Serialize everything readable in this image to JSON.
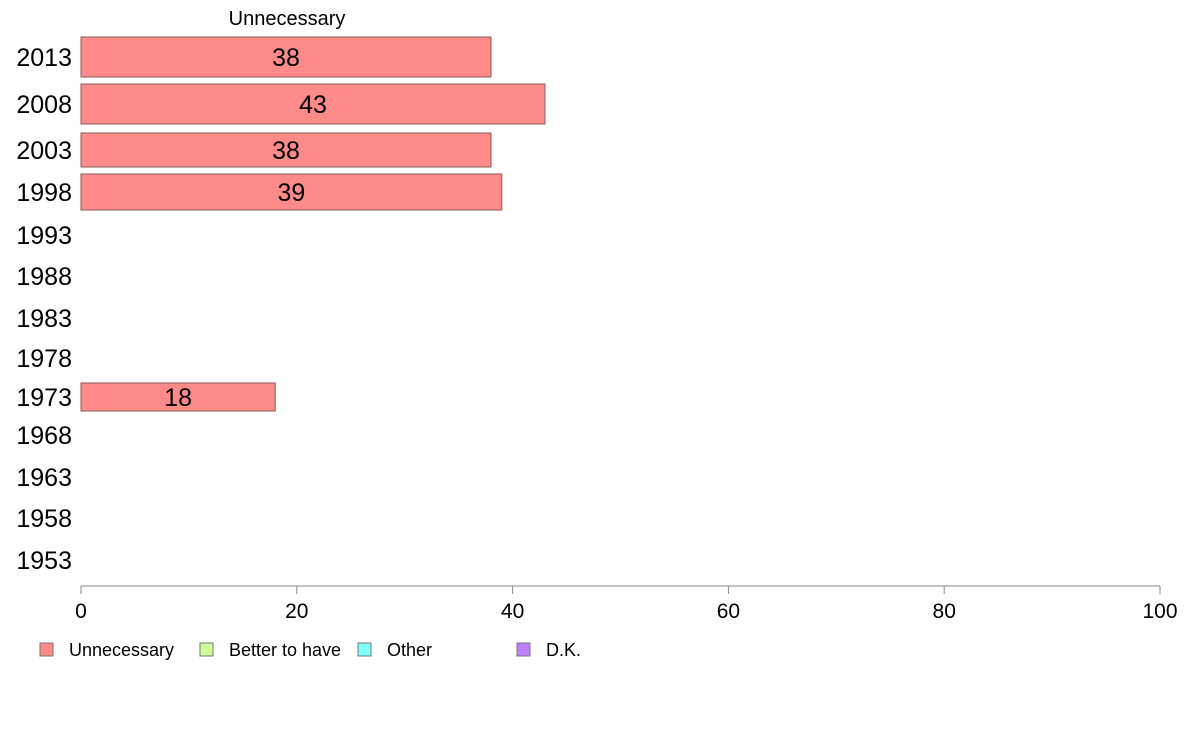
{
  "chart_data": {
    "type": "bar",
    "orientation": "horizontal",
    "title": "Unnecessary",
    "categories": [
      "2013",
      "2008",
      "2003",
      "1998",
      "1993",
      "1988",
      "1983",
      "1978",
      "1973",
      "1968",
      "1963",
      "1958",
      "1953"
    ],
    "series": [
      {
        "name": "Unnecessary",
        "color": "#ff8a8a",
        "values": [
          38,
          43,
          38,
          39,
          null,
          null,
          null,
          null,
          18,
          null,
          null,
          null,
          null
        ]
      }
    ],
    "data_labels": [
      38,
      43,
      38,
      39,
      null,
      null,
      null,
      null,
      18,
      null,
      null,
      null,
      null
    ],
    "xlim": [
      0,
      100
    ],
    "xticks": [
      0,
      20,
      40,
      60,
      80,
      100
    ],
    "grid": false,
    "legend": {
      "placement": "bottom-left",
      "entries": [
        {
          "label": "Unnecessary",
          "color": "#ff8a8a"
        },
        {
          "label": "Better to have",
          "color": "#ccff99"
        },
        {
          "label": "Other",
          "color": "#80ffff"
        },
        {
          "label": "D.K.",
          "color": "#bf80ff"
        }
      ]
    }
  }
}
